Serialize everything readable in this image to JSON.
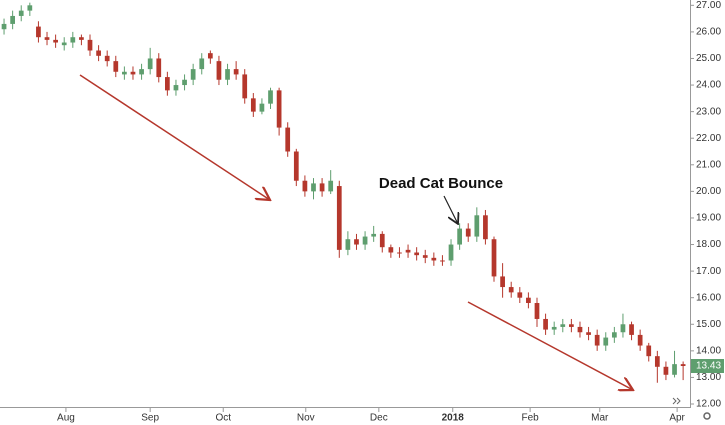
{
  "chart_data": {
    "type": "candlestick",
    "annotation": "Dead Cat Bounce",
    "open": [
      26.1,
      26.3,
      26.6,
      26.8,
      26.2,
      25.8,
      25.7,
      25.5,
      25.6,
      25.8,
      25.7,
      25.3,
      25.1,
      24.9,
      24.4,
      24.5,
      24.4,
      24.6,
      25.0,
      24.3,
      23.8,
      24.0,
      24.2,
      24.6,
      25.2,
      24.9,
      24.2,
      24.6,
      24.4,
      23.5,
      23.0,
      23.3,
      23.8,
      22.4,
      21.5,
      20.4,
      20.0,
      20.3,
      20.0,
      20.2,
      17.8,
      18.2,
      18.0,
      18.3,
      18.4,
      17.9,
      17.7,
      17.8,
      17.7,
      17.6,
      17.5,
      17.4,
      17.4,
      18.0,
      18.6,
      18.3,
      19.1,
      18.2,
      16.8,
      16.4,
      16.2,
      16.0,
      15.8,
      15.2,
      14.8,
      14.9,
      15.0,
      14.9,
      14.7,
      14.6,
      14.2,
      14.5,
      14.7,
      15.0,
      14.6,
      14.2,
      13.8,
      13.4,
      13.1,
      13.5
    ],
    "high": [
      26.5,
      26.8,
      27.0,
      27.1,
      26.4,
      26.0,
      25.9,
      25.8,
      26.0,
      25.9,
      25.9,
      25.5,
      25.3,
      25.1,
      24.7,
      24.7,
      24.8,
      25.4,
      25.2,
      24.5,
      24.2,
      24.4,
      24.8,
      25.2,
      25.3,
      25.1,
      24.8,
      24.9,
      24.6,
      23.7,
      23.5,
      23.9,
      23.9,
      22.6,
      21.6,
      20.6,
      20.5,
      20.5,
      20.8,
      20.4,
      18.5,
      18.4,
      18.5,
      18.7,
      18.5,
      18.0,
      17.9,
      18.0,
      17.9,
      17.8,
      17.7,
      17.6,
      18.2,
      18.8,
      18.8,
      19.4,
      19.3,
      18.3,
      17.3,
      16.6,
      16.4,
      16.2,
      16.0,
      15.4,
      15.1,
      15.2,
      15.2,
      15.1,
      14.9,
      14.8,
      14.7,
      14.9,
      15.4,
      15.1,
      14.8,
      14.3,
      14.0,
      13.6,
      14.0,
      13.6
    ],
    "low": [
      25.9,
      26.1,
      26.4,
      26.6,
      25.6,
      25.5,
      25.4,
      25.3,
      25.4,
      25.5,
      25.1,
      24.9,
      24.7,
      24.3,
      24.2,
      24.2,
      24.2,
      24.4,
      24.1,
      23.6,
      23.6,
      23.8,
      24.0,
      24.4,
      24.8,
      24.0,
      24.0,
      24.2,
      23.3,
      22.8,
      22.9,
      23.1,
      22.1,
      21.3,
      20.2,
      19.8,
      19.7,
      19.8,
      19.9,
      17.5,
      17.6,
      17.8,
      17.8,
      18.1,
      17.7,
      17.5,
      17.5,
      17.5,
      17.4,
      17.3,
      17.2,
      17.2,
      17.2,
      17.8,
      18.1,
      18.1,
      18.0,
      16.6,
      16.0,
      16.0,
      15.8,
      15.6,
      14.9,
      14.6,
      14.6,
      14.7,
      14.7,
      14.5,
      14.4,
      14.0,
      14.0,
      14.3,
      14.5,
      14.4,
      14.0,
      13.6,
      12.8,
      12.9,
      13.0,
      12.9
    ],
    "close": [
      26.3,
      26.6,
      26.8,
      27.0,
      25.8,
      25.7,
      25.6,
      25.6,
      25.8,
      25.7,
      25.3,
      25.1,
      24.9,
      24.5,
      24.5,
      24.4,
      24.6,
      25.0,
      24.3,
      23.8,
      24.0,
      24.2,
      24.6,
      25.0,
      25.0,
      24.2,
      24.6,
      24.4,
      23.5,
      23.0,
      23.3,
      23.8,
      22.4,
      21.5,
      20.4,
      20.0,
      20.3,
      20.0,
      20.4,
      17.8,
      18.2,
      18.0,
      18.3,
      18.4,
      17.9,
      17.7,
      17.7,
      17.7,
      17.6,
      17.5,
      17.4,
      17.4,
      18.0,
      18.6,
      18.3,
      19.1,
      18.2,
      16.8,
      16.4,
      16.2,
      16.0,
      15.8,
      15.2,
      14.8,
      14.9,
      15.0,
      14.9,
      14.7,
      14.6,
      14.2,
      14.5,
      14.7,
      15.0,
      14.6,
      14.2,
      13.8,
      13.4,
      13.1,
      13.5,
      13.43
    ],
    "up_color": "#5e9e6e",
    "down_color": "#b5372c",
    "last_price": 13.43,
    "last_price_color": "#5e9e6e",
    "xlim": [
      -0.47,
      79.8
    ],
    "xticks": [
      {
        "value": 7.2,
        "label": "Aug"
      },
      {
        "value": 17,
        "label": "Sep"
      },
      {
        "value": 25.5,
        "label": "Oct"
      },
      {
        "value": 35.1,
        "label": "Nov"
      },
      {
        "value": 43.6,
        "label": "Dec"
      },
      {
        "value": 52.2,
        "label": "2018"
      },
      {
        "value": 61.2,
        "label": "Feb"
      },
      {
        "value": 69.3,
        "label": "Mar"
      },
      {
        "value": 78.3,
        "label": "Apr"
      }
    ],
    "ylim": [
      11.85,
      27.2
    ],
    "yticks": [
      {
        "value": 12,
        "label": "12.00"
      },
      {
        "value": 13,
        "label": "13.00"
      },
      {
        "value": 14,
        "label": "14.00"
      },
      {
        "value": 15,
        "label": "15.00"
      },
      {
        "value": 16,
        "label": "16.00"
      },
      {
        "value": 17,
        "label": "17.00"
      },
      {
        "value": 18,
        "label": "18.00"
      },
      {
        "value": 19,
        "label": "19.00"
      },
      {
        "value": 20,
        "label": "20.00"
      },
      {
        "value": 21,
        "label": "21.00"
      },
      {
        "value": 22,
        "label": "22.00"
      },
      {
        "value": 23,
        "label": "23.00"
      },
      {
        "value": 24,
        "label": "24.00"
      },
      {
        "value": 25,
        "label": "25.00"
      },
      {
        "value": 26,
        "label": "26.00"
      },
      {
        "value": 27,
        "label": "27.00"
      }
    ],
    "grid": false
  }
}
